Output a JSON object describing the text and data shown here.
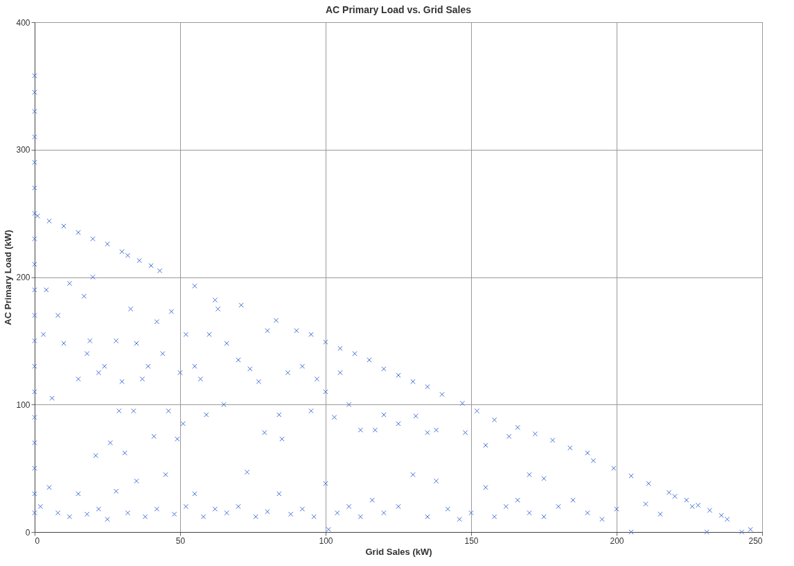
{
  "chart_data": {
    "type": "scatter",
    "title": "AC Primary Load vs. Grid Sales",
    "xlabel": "Grid Sales (kW)",
    "ylabel": "AC Primary Load (kW)",
    "xlim": [
      0,
      250
    ],
    "xticks": [
      0,
      50,
      100,
      150,
      200,
      250
    ],
    "ylim": [
      0,
      400
    ],
    "yticks": [
      0,
      100,
      200,
      300,
      400
    ],
    "grid": true,
    "marker": "cross",
    "series": [
      {
        "color": "#3f6fd8",
        "x": [
          0,
          0,
          0,
          0,
          0,
          0,
          0,
          0,
          0,
          0,
          0,
          0,
          0,
          0,
          0,
          0,
          0,
          0,
          0,
          1,
          5,
          10,
          15,
          20,
          25,
          30,
          32,
          36,
          40,
          43,
          55,
          62,
          71,
          83,
          90,
          95,
          100,
          105,
          110,
          115,
          120,
          125,
          130,
          135,
          140,
          147,
          152,
          158,
          166,
          172,
          178,
          184,
          192,
          199,
          205,
          211,
          218,
          224,
          228,
          232,
          236,
          238,
          3,
          4,
          6,
          8,
          10,
          12,
          15,
          17,
          18,
          19,
          20,
          21,
          22,
          24,
          26,
          28,
          29,
          30,
          31,
          33,
          34,
          35,
          37,
          39,
          41,
          42,
          44,
          46,
          47,
          49,
          50,
          51,
          52,
          55,
          57,
          59,
          60,
          63,
          65,
          66,
          70,
          74,
          77,
          79,
          80,
          84,
          85,
          87,
          92,
          95,
          97,
          100,
          103,
          105,
          108,
          112,
          117,
          120,
          125,
          131,
          135,
          138,
          148,
          155,
          163,
          170,
          175,
          190,
          2,
          5,
          8,
          12,
          15,
          18,
          22,
          25,
          28,
          32,
          35,
          38,
          42,
          45,
          48,
          52,
          55,
          58,
          62,
          66,
          70,
          73,
          76,
          80,
          84,
          88,
          92,
          96,
          100,
          101,
          104,
          108,
          112,
          116,
          120,
          125,
          130,
          135,
          138,
          142,
          146,
          150,
          155,
          158,
          162,
          166,
          170,
          175,
          180,
          185,
          190,
          195,
          200,
          205,
          210,
          215,
          220,
          226,
          231,
          243,
          246
        ],
        "values": [
          358,
          345,
          330,
          310,
          290,
          270,
          250,
          230,
          210,
          190,
          170,
          150,
          130,
          110,
          90,
          70,
          50,
          30,
          15,
          248,
          244,
          240,
          235,
          230,
          226,
          220,
          217,
          213,
          209,
          205,
          193,
          182,
          178,
          166,
          158,
          155,
          149,
          144,
          140,
          135,
          128,
          123,
          118,
          114,
          108,
          101,
          95,
          88,
          82,
          77,
          72,
          66,
          56,
          50,
          44,
          38,
          31,
          25,
          21,
          17,
          13,
          10,
          155,
          190,
          105,
          170,
          148,
          195,
          120,
          185,
          140,
          150,
          200,
          60,
          125,
          130,
          70,
          150,
          95,
          118,
          62,
          175,
          95,
          148,
          120,
          130,
          75,
          165,
          140,
          95,
          173,
          73,
          125,
          85,
          155,
          130,
          120,
          92,
          155,
          175,
          100,
          148,
          135,
          128,
          118,
          78,
          158,
          92,
          73,
          125,
          130,
          95,
          120,
          110,
          90,
          125,
          100,
          80,
          80,
          92,
          85,
          91,
          78,
          80,
          78,
          68,
          75,
          45,
          42,
          62,
          20,
          35,
          15,
          12,
          30,
          14,
          18,
          10,
          32,
          15,
          40,
          12,
          18,
          45,
          14,
          20,
          30,
          12,
          18,
          15,
          20,
          47,
          12,
          16,
          30,
          14,
          18,
          12,
          38,
          2,
          15,
          20,
          12,
          25,
          15,
          20,
          45,
          12,
          40,
          18,
          10,
          15,
          35,
          12,
          20,
          25,
          15,
          12,
          20,
          25,
          15,
          10,
          18,
          0,
          22,
          14,
          28,
          20,
          0,
          0,
          2
        ]
      }
    ]
  }
}
